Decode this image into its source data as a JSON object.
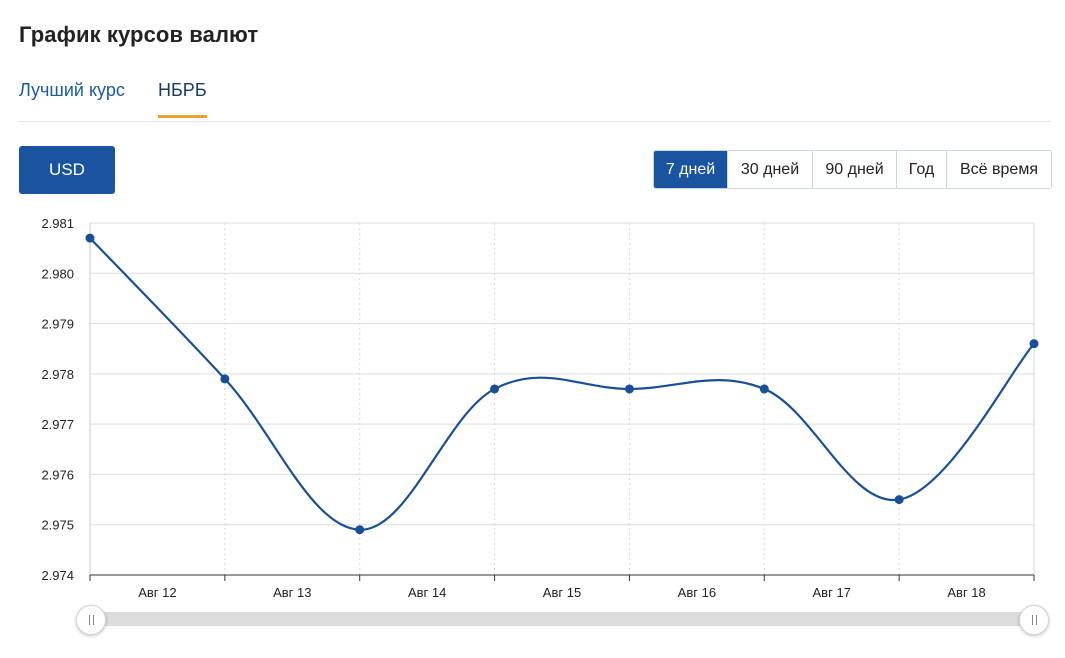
{
  "page": {
    "title": "График курсов валют"
  },
  "tabs": [
    {
      "label": "Лучший курс",
      "active": false
    },
    {
      "label": "НБРБ",
      "active": true
    }
  ],
  "currency": {
    "label": "USD"
  },
  "periods": [
    {
      "label": "7 дней",
      "active": true
    },
    {
      "label": "30 дней",
      "active": false
    },
    {
      "label": "90 дней",
      "active": false
    },
    {
      "label": "Год",
      "active": false
    },
    {
      "label": "Всё время",
      "active": false
    }
  ],
  "colors": {
    "accent": "#1a53a0",
    "line": "#1a4f98",
    "tab_underline": "#f0a030"
  },
  "chart_data": {
    "type": "line",
    "title": "",
    "xlabel": "",
    "ylabel": "",
    "grid": true,
    "x_tick_labels": [
      "Авг 12",
      "Авг 13",
      "Авг 14",
      "Авг 15",
      "Авг 16",
      "Авг 17",
      "Авг 18"
    ],
    "y_tick_labels": [
      "2.981",
      "2.980",
      "2.979",
      "2.978",
      "2.977",
      "2.976",
      "2.975",
      "2.974"
    ],
    "ylim": [
      2.974,
      2.981
    ],
    "series": [
      {
        "points": [
          {
            "x": "2023-08-11",
            "y": 2.9807
          },
          {
            "x": "2023-08-12",
            "y": 2.9779
          },
          {
            "x": "2023-08-13",
            "y": 2.9749
          },
          {
            "x": "2023-08-14",
            "y": 2.9777
          },
          {
            "x": "2023-08-15",
            "y": 2.9777
          },
          {
            "x": "2023-08-16",
            "y": 2.9777
          },
          {
            "x": "2023-08-17",
            "y": 2.9755
          },
          {
            "x": "2023-08-18",
            "y": 2.9786
          }
        ]
      }
    ]
  }
}
